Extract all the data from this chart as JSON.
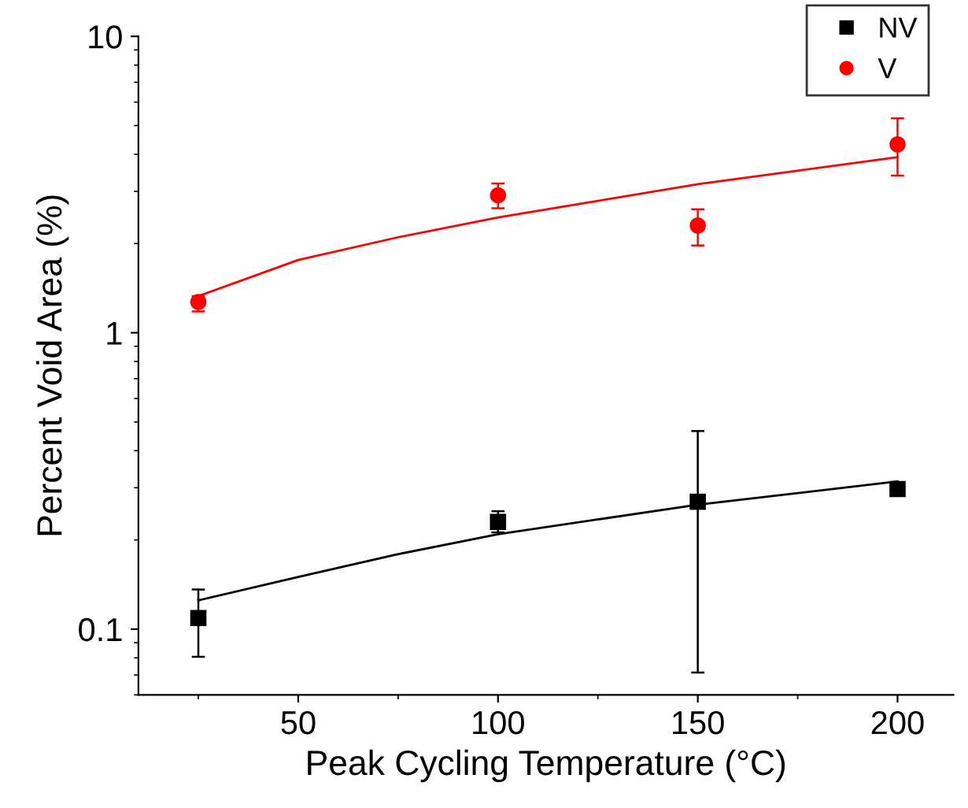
{
  "chart_data": {
    "type": "scatter",
    "xlabel": "Peak Cycling Temperature (°C)",
    "ylabel": "Percent Void Area (%)",
    "log": "y",
    "xlim": [
      10,
      214
    ],
    "xticks": [
      50,
      100,
      150,
      200
    ],
    "ylim": [
      0.06,
      10
    ],
    "yticks": [
      {
        "value": 0.1,
        "label": "0.1"
      },
      1,
      10
    ],
    "legend": "top right",
    "grid": false,
    "series": [
      {
        "name": "NV",
        "marker": "square",
        "color": "#000000",
        "x": [
          25,
          100,
          150,
          200
        ],
        "values": [
          0.109,
          0.23,
          0.269,
          0.297
        ],
        "errors": [
          [
            0.0806,
            0.136
          ],
          [
            0.212,
            0.25
          ],
          [
            0.0714,
            0.466
          ],
          null
        ]
      },
      {
        "name": "V",
        "marker": "circle",
        "color": "#ff0000",
        "x": [
          25,
          100,
          150,
          200
        ],
        "values": [
          1.27,
          2.91,
          2.3,
          4.32
        ],
        "errors": [
          [
            1.18,
            1.33
          ],
          [
            2.63,
            3.19
          ],
          [
            1.97,
            2.61
          ],
          [
            3.39,
            5.29
          ]
        ]
      },
      {
        "type": "line",
        "marker": "none",
        "line_style": "solid",
        "color": "#000000",
        "x": [
          25,
          50,
          75,
          100,
          150,
          200
        ],
        "values": [
          0.125,
          0.15,
          0.179,
          0.209,
          0.263,
          0.315
        ]
      },
      {
        "type": "line",
        "marker": "none",
        "line_style": "solid",
        "color": "#ff0000",
        "x": [
          25,
          50,
          75,
          100,
          150,
          200
        ],
        "values": [
          1.33,
          1.76,
          2.1,
          2.45,
          3.17,
          3.91
        ]
      }
    ]
  }
}
